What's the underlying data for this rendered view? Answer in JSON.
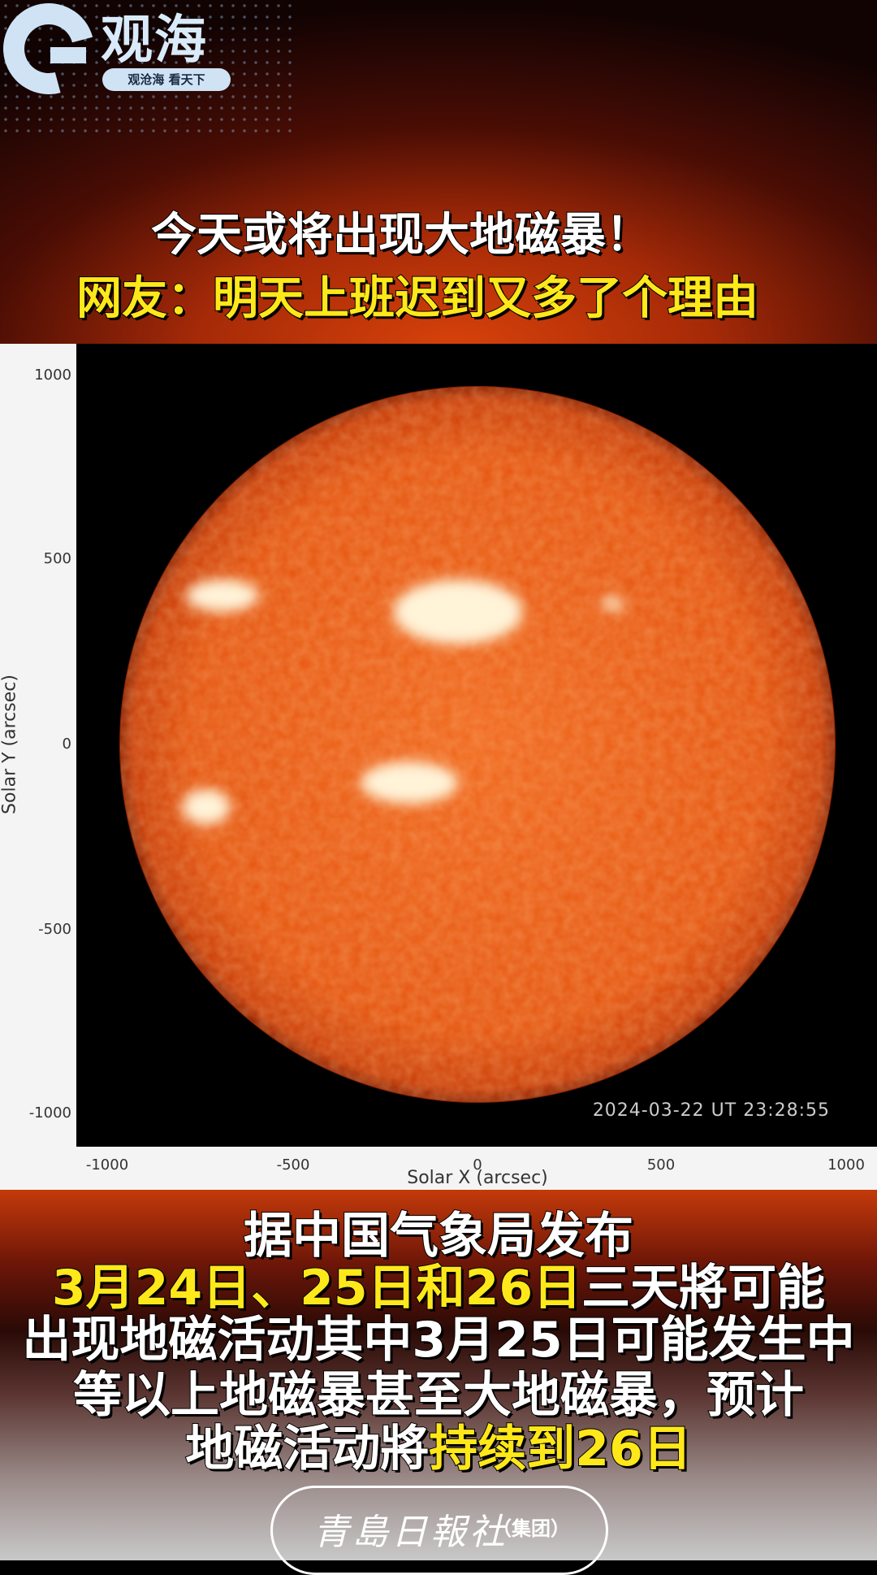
{
  "logo": {
    "name": "观海",
    "slogan": "观沧海  看天下"
  },
  "headline": {
    "line1": "今天或将出现大地磁暴！",
    "line2": "网友：明天上班迟到又多了个理由"
  },
  "figure": {
    "xlabel": "Solar X (arcsec)",
    "ylabel": "Solar Y (arcsec)",
    "x_ticks": [
      "-1000",
      "-500",
      "0",
      "500",
      "1000"
    ],
    "y_ticks": [
      "1000",
      "500",
      "0",
      "-500",
      "-1000"
    ],
    "timestamp": "2024-03-22 UT 23:28:55",
    "sun_color": "#e8560c"
  },
  "body": {
    "line1": "据中国气象局发布",
    "line2_highlight": "3月24日、25日和26日",
    "line2_rest": "三天將可能",
    "line3": "出现地磁活动其中3月25日可能发生中",
    "line4": "等以上地磁暴甚至大地磁暴，预计",
    "line5_start": "地磁活动將",
    "line5_highlight": "持续到26日",
    "highlight_color": "#ffe81a"
  },
  "press": {
    "name": "青島日報社",
    "group": "（集团）"
  }
}
